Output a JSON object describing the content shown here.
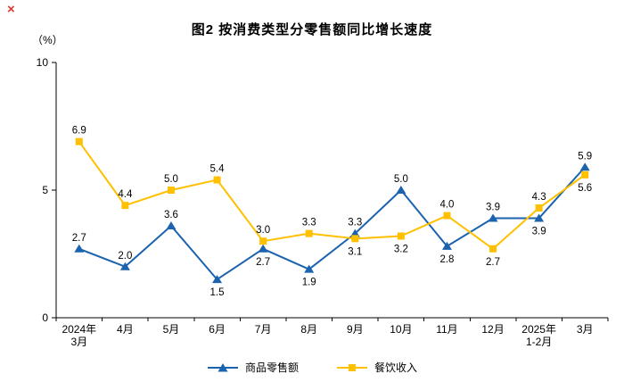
{
  "decor": {
    "red_x": "×"
  },
  "chart_data": {
    "type": "line",
    "title": "图2 按消费类型分零售额同比增长速度",
    "unit_label": "（%）",
    "categories": [
      "2024年\n3月",
      "4月",
      "5月",
      "6月",
      "7月",
      "8月",
      "9月",
      "10月",
      "11月",
      "12月",
      "2025年\n1-2月",
      "3月"
    ],
    "series": [
      {
        "name": "商品零售额",
        "color": "#1B63AE",
        "marker": "triangle",
        "values": [
          2.7,
          2.0,
          3.6,
          1.5,
          2.7,
          1.9,
          3.3,
          5.0,
          2.8,
          3.9,
          3.9,
          5.9
        ],
        "label_side": [
          "above",
          "above",
          "above",
          "below",
          "below",
          "below",
          "above",
          "above",
          "below",
          "above",
          "below",
          "above"
        ]
      },
      {
        "name": "餐饮收入",
        "color": "#FFC000",
        "marker": "square",
        "values": [
          6.9,
          4.4,
          5.0,
          5.4,
          3.0,
          3.3,
          3.1,
          3.2,
          4.0,
          2.7,
          4.3,
          5.6
        ],
        "label_side": [
          "above",
          "above",
          "above",
          "above",
          "above",
          "above",
          "below",
          "below",
          "above",
          "below",
          "above",
          "below"
        ]
      }
    ],
    "xlabel": "",
    "ylabel": "（%）",
    "ylim": [
      0,
      10
    ],
    "yticks": [
      0,
      5,
      10
    ],
    "grid": false,
    "legend_position": "bottom"
  }
}
